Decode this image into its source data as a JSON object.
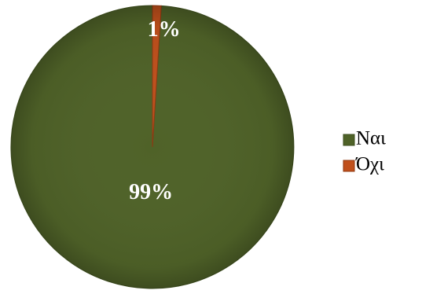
{
  "chart_data": {
    "type": "pie",
    "title": "",
    "legend_position": "right",
    "slices": [
      {
        "label": "Ναι",
        "value": 99,
        "display": "99%",
        "color": "#4f6228",
        "edge": "#3d4d1e"
      },
      {
        "label": "Όχι",
        "value": 1,
        "display": "1%",
        "color": "#c0501c",
        "edge": "#8f3a12"
      }
    ]
  }
}
